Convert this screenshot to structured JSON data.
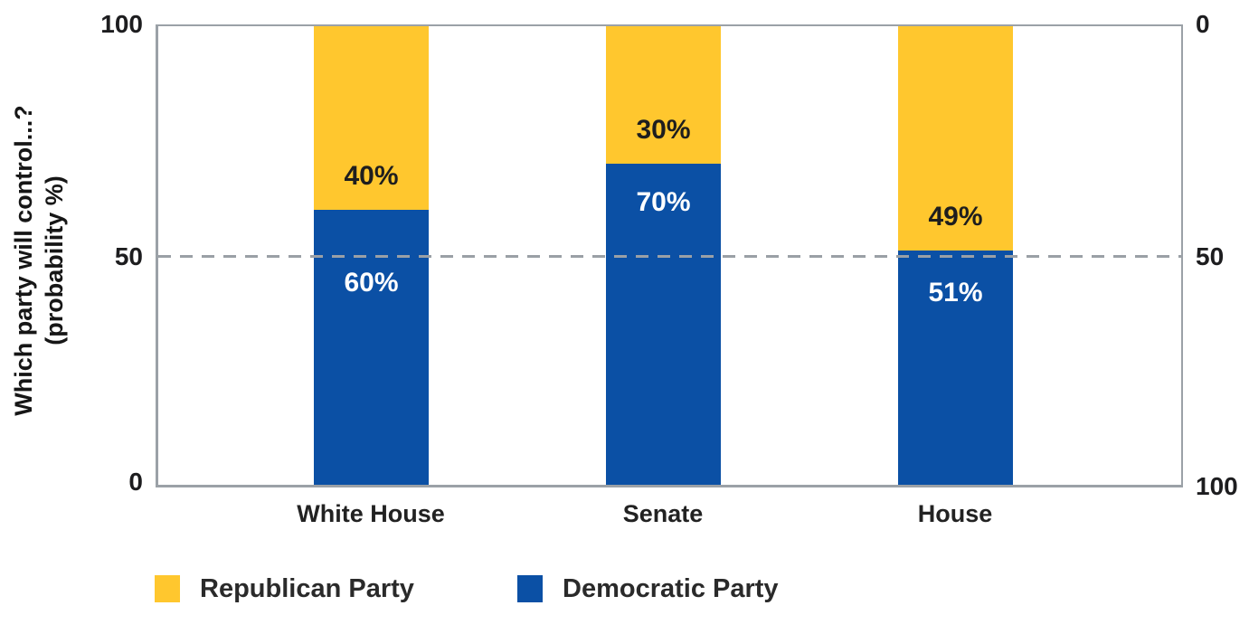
{
  "figure": {
    "background": "#FFFFFF",
    "axis_line_color": "#9BA1A7",
    "reference_line_color": "#9AA0A6"
  },
  "y_axis": {
    "title_line1": "Which party will control...?",
    "title_line2": "(probability %)",
    "left_ticks": [
      "100",
      "50",
      "0"
    ],
    "right_ticks": [
      "0",
      "50",
      "100"
    ]
  },
  "legend": {
    "items": [
      {
        "label": "Republican Party",
        "color": "#FFC72E"
      },
      {
        "label": "Democratic Party",
        "color": "#0B50A5"
      }
    ]
  },
  "chart_data": {
    "type": "bar",
    "stacked": true,
    "categories": [
      "White House",
      "Senate",
      "House"
    ],
    "series": [
      {
        "name": "Republican Party",
        "color": "#FFC72E",
        "stack_position": "top",
        "values": [
          40,
          30,
          49
        ]
      },
      {
        "name": "Democratic Party",
        "color": "#0B50A5",
        "stack_position": "bottom",
        "values": [
          60,
          70,
          51
        ]
      }
    ],
    "data_label_format": "percent",
    "data_labels": {
      "republican": [
        "40%",
        "30%",
        "49%"
      ],
      "democratic": [
        "60%",
        "70%",
        "51%"
      ]
    },
    "ylabel": "Which party will control...? (probability %)",
    "ylim": [
      0,
      100
    ],
    "left_axis_ticks": [
      100,
      50,
      0
    ],
    "right_axis_ticks": [
      0,
      50,
      100
    ],
    "right_axis_inverted": true,
    "reference_line_y": 50,
    "reference_line_style": "dashed",
    "grid": false,
    "legend_position": "bottom"
  }
}
